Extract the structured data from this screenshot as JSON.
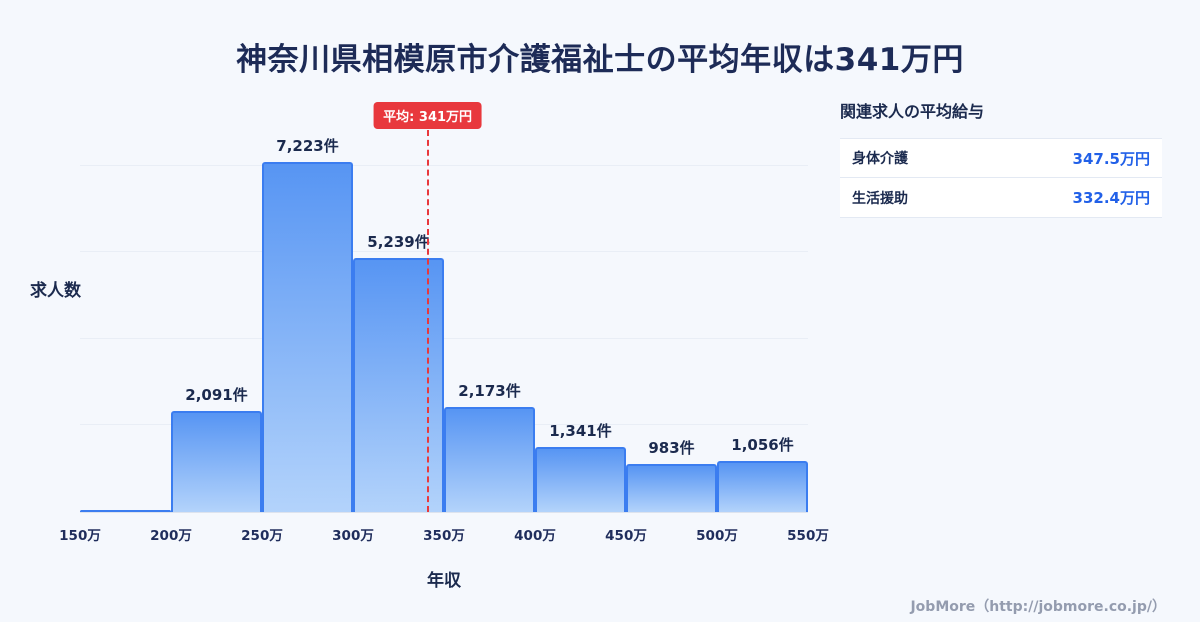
{
  "title": "神奈川県相模原市介護福祉士の平均年収は341万円",
  "chart_data": {
    "type": "bar",
    "title": "神奈川県相模原市介護福祉士の平均年収は341万円",
    "xlabel": "年収",
    "ylabel": "求人数",
    "bin_edges": [
      "150万",
      "200万",
      "250万",
      "300万",
      "350万",
      "400万",
      "450万",
      "500万",
      "550万"
    ],
    "values": [
      40,
      2091,
      7223,
      5239,
      2173,
      1341,
      983,
      1056
    ],
    "data_labels": [
      "",
      "2,091件",
      "7,223件",
      "5,239件",
      "2,173件",
      "1,341件",
      "983件",
      "1,056件"
    ],
    "ylim": [
      0,
      8500
    ],
    "grid": true,
    "legend": "none",
    "average": {
      "value": 341,
      "label": "平均: 341万円",
      "x_range": [
        150,
        550
      ]
    },
    "colors": {
      "bar_top": "#5795f3",
      "bar_bottom": "#b3d3fb",
      "bar_border": "#3b7df0",
      "avg_line": "#e8383d",
      "text": "#1b2a4e"
    }
  },
  "panel": {
    "title": "関連求人の平均給与",
    "rows": [
      {
        "label": "身体介護",
        "value": "347.5万円"
      },
      {
        "label": "生活援助",
        "value": "332.4万円"
      }
    ]
  },
  "footer": {
    "credit": "JobMore（http://jobmore.co.jp/）"
  }
}
